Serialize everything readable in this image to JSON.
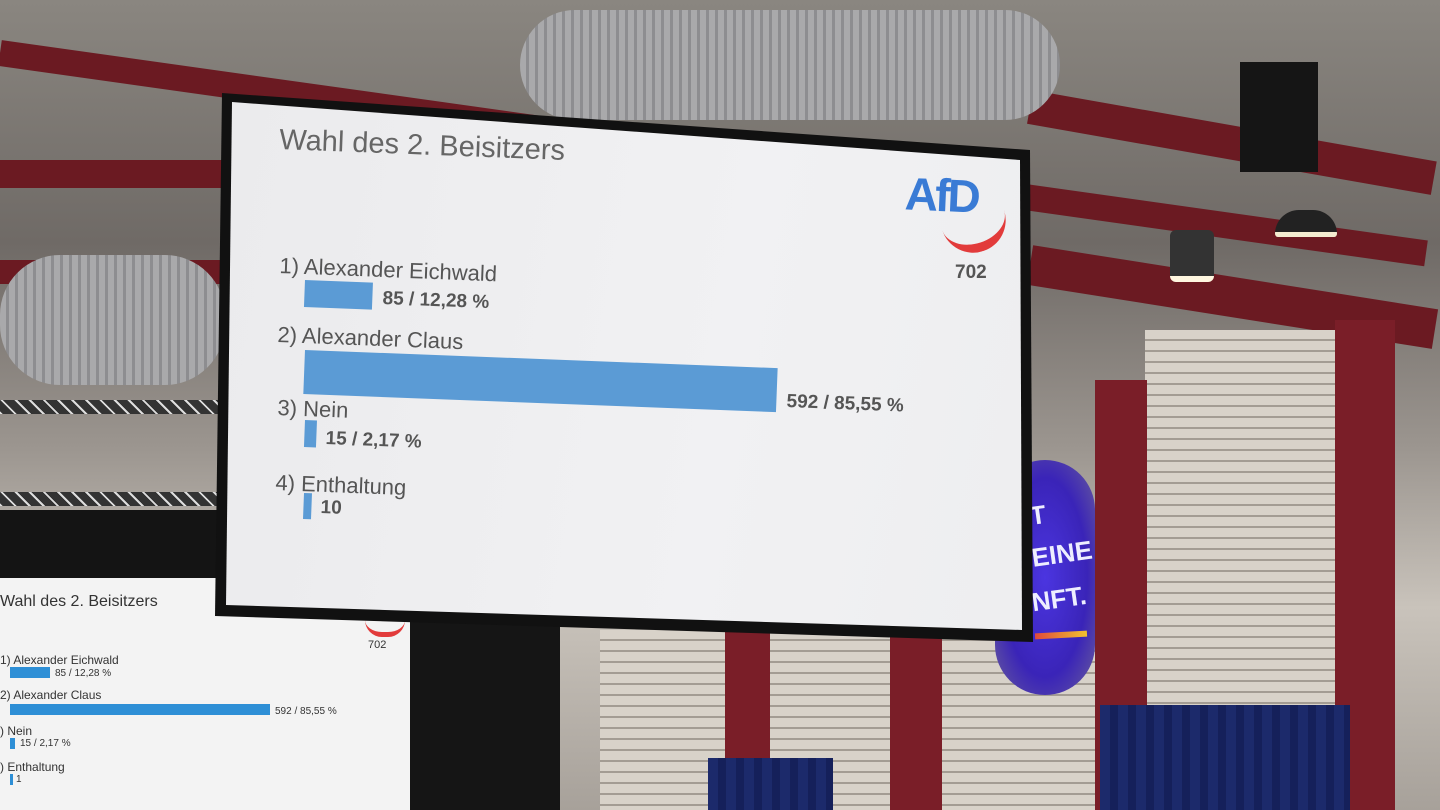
{
  "slide": {
    "title": "Wahl des 2. Beisitzers",
    "logo": "AfD",
    "total": "702",
    "items": [
      {
        "label": "1) Alexander Eichwald",
        "votes": 85,
        "value_text": "85 / 12,28 %"
      },
      {
        "label": "2) Alexander Claus",
        "votes": 592,
        "value_text": "592 / 85,55 %"
      },
      {
        "label": "3) Nein",
        "votes": 15,
        "value_text": "15 / 2,17 %"
      },
      {
        "label": "4) Enthaltung",
        "votes": 10,
        "value_text": "10"
      }
    ],
    "bar_color": "#5b9bd5",
    "logo_colors": {
      "text": "#3a7bd5",
      "swoosh": "#e23b3b"
    }
  },
  "side_screen": {
    "title": "Wahl des 2. Beisitzers",
    "total": "702",
    "items": [
      {
        "label": "1) Alexander Eichwald",
        "value_text": "85 / 12,28 %"
      },
      {
        "label": "2) Alexander Claus",
        "value_text": "592 / 85,55 %"
      },
      {
        "label": ") Nein",
        "value_text": "15 / 2,17 %"
      },
      {
        "label": ") Enthaltung",
        "value_text": "1"
      }
    ]
  },
  "banner": {
    "line1": "T",
    "line2": "DEINE",
    "line3": "UNFT."
  }
}
